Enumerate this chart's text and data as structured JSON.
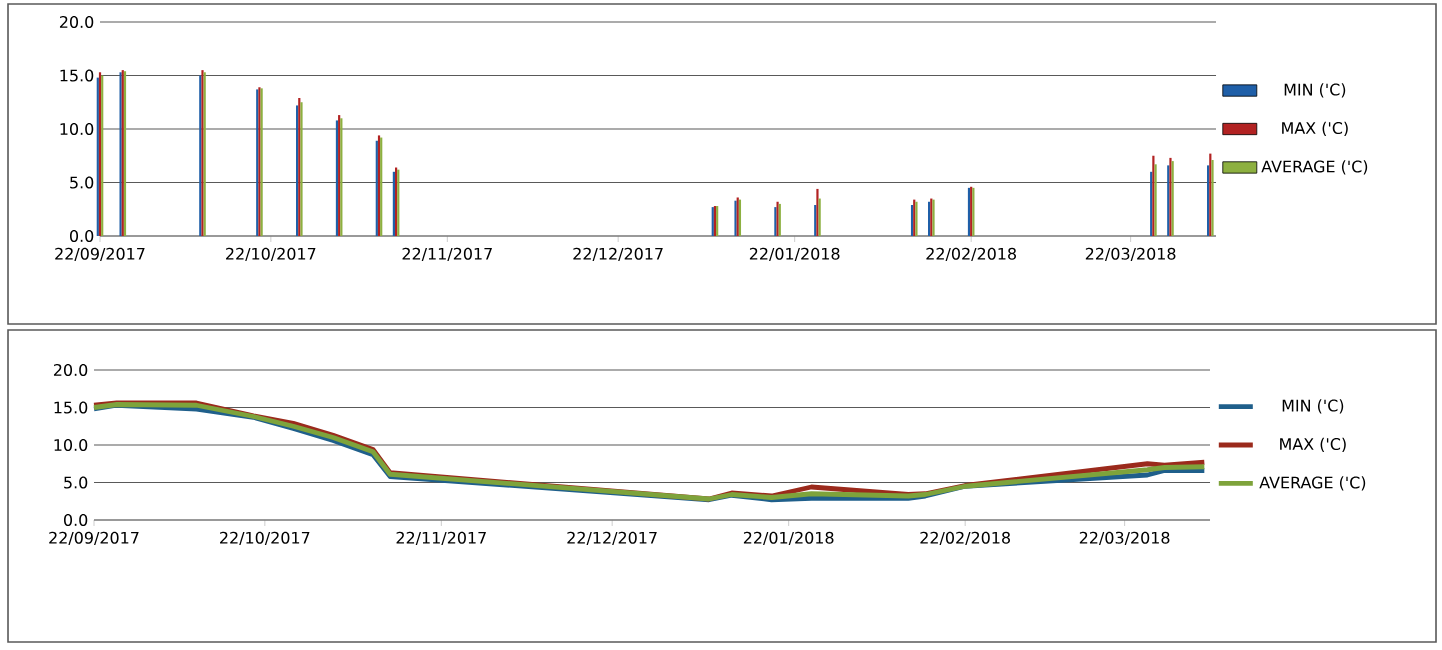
{
  "chart_data": [
    {
      "type": "bar",
      "x": [
        "2017-09-22",
        "2017-09-26",
        "2017-10-10",
        "2017-10-20",
        "2017-10-27",
        "2017-11-03",
        "2017-11-10",
        "2017-11-13",
        "2018-01-08",
        "2018-01-12",
        "2018-01-19",
        "2018-01-26",
        "2018-02-12",
        "2018-02-15",
        "2018-02-22",
        "2018-03-26",
        "2018-03-29",
        "2018-04-05"
      ],
      "series": [
        {
          "name": "MIN ('C)",
          "color": "#1f5fa8",
          "values": [
            14.8,
            15.3,
            15.0,
            13.7,
            12.2,
            10.8,
            8.9,
            6.0,
            2.7,
            3.3,
            2.7,
            2.9,
            2.9,
            3.2,
            4.5,
            6.0,
            6.6,
            6.6
          ]
        },
        {
          "name": "MAX ('C)",
          "color": "#b22222",
          "values": [
            15.3,
            15.5,
            15.5,
            13.9,
            12.9,
            11.3,
            9.4,
            6.4,
            2.8,
            3.6,
            3.2,
            4.4,
            3.4,
            3.5,
            4.6,
            7.5,
            7.3,
            7.7
          ]
        },
        {
          "name": "AVERAGE ('C)",
          "color": "#8db040",
          "values": [
            15.0,
            15.4,
            15.3,
            13.8,
            12.5,
            11.0,
            9.2,
            6.2,
            2.8,
            3.4,
            3.0,
            3.5,
            3.2,
            3.4,
            4.5,
            6.7,
            7.0,
            7.1
          ]
        }
      ],
      "xlim": [
        "2017-09-22",
        "2018-04-06"
      ],
      "xticks": [
        {
          "value": "2017-09-22",
          "label": "22/09/2017"
        },
        {
          "value": "2017-10-22",
          "label": "22/10/2017"
        },
        {
          "value": "2017-11-22",
          "label": "22/11/2017"
        },
        {
          "value": "2017-12-22",
          "label": "22/12/2017"
        },
        {
          "value": "2018-01-22",
          "label": "22/01/2018"
        },
        {
          "value": "2018-02-22",
          "label": "22/02/2018"
        },
        {
          "value": "2018-03-22",
          "label": "22/03/2018"
        }
      ],
      "ylim": [
        0,
        20
      ],
      "yticks": [
        {
          "value": 0,
          "label": "0.0"
        },
        {
          "value": 5,
          "label": "5.0"
        },
        {
          "value": 10,
          "label": "10.0"
        },
        {
          "value": 15,
          "label": "15.0"
        },
        {
          "value": 20,
          "label": "20.0"
        }
      ],
      "grid": "y",
      "legend": "right"
    },
    {
      "type": "line",
      "x": [
        "2017-09-22",
        "2017-09-26",
        "2017-10-10",
        "2017-10-20",
        "2017-10-27",
        "2017-11-03",
        "2017-11-10",
        "2017-11-13",
        "2018-01-08",
        "2018-01-12",
        "2018-01-19",
        "2018-01-26",
        "2018-02-12",
        "2018-02-15",
        "2018-02-22",
        "2018-03-26",
        "2018-03-29",
        "2018-04-05"
      ],
      "series": [
        {
          "name": "MIN ('C)",
          "color": "#1f5f8b",
          "values": [
            14.8,
            15.3,
            14.8,
            13.7,
            12.2,
            10.6,
            8.7,
            5.8,
            2.7,
            3.3,
            2.7,
            2.9,
            2.9,
            3.2,
            4.5,
            6.0,
            6.6,
            6.6
          ]
        },
        {
          "name": "MAX ('C)",
          "color": "#9b2a1c",
          "values": [
            15.3,
            15.6,
            15.6,
            13.9,
            12.9,
            11.3,
            9.4,
            6.3,
            2.8,
            3.6,
            3.2,
            4.4,
            3.4,
            3.5,
            4.6,
            7.5,
            7.3,
            7.7
          ]
        },
        {
          "name": "AVERAGE ('C)",
          "color": "#7ea33b",
          "values": [
            15.0,
            15.4,
            15.3,
            13.8,
            12.5,
            11.0,
            9.1,
            6.1,
            2.8,
            3.4,
            3.0,
            3.5,
            3.2,
            3.4,
            4.5,
            6.7,
            7.0,
            7.1
          ]
        }
      ],
      "xlim": [
        "2017-09-22",
        "2018-04-06"
      ],
      "xticks": [
        {
          "value": "2017-09-22",
          "label": "22/09/2017"
        },
        {
          "value": "2017-10-22",
          "label": "22/10/2017"
        },
        {
          "value": "2017-11-22",
          "label": "22/11/2017"
        },
        {
          "value": "2017-12-22",
          "label": "22/12/2017"
        },
        {
          "value": "2018-01-22",
          "label": "22/01/2018"
        },
        {
          "value": "2018-02-22",
          "label": "22/02/2018"
        },
        {
          "value": "2018-03-22",
          "label": "22/03/2018"
        }
      ],
      "ylim": [
        0,
        20
      ],
      "yticks": [
        {
          "value": 0,
          "label": "0.0"
        },
        {
          "value": 5,
          "label": "5.0"
        },
        {
          "value": 10,
          "label": "10.0"
        },
        {
          "value": 15,
          "label": "15.0"
        },
        {
          "value": 20,
          "label": "20.0"
        }
      ],
      "grid": "y",
      "legend": "right",
      "line_style": "solid",
      "marker": "none"
    }
  ]
}
